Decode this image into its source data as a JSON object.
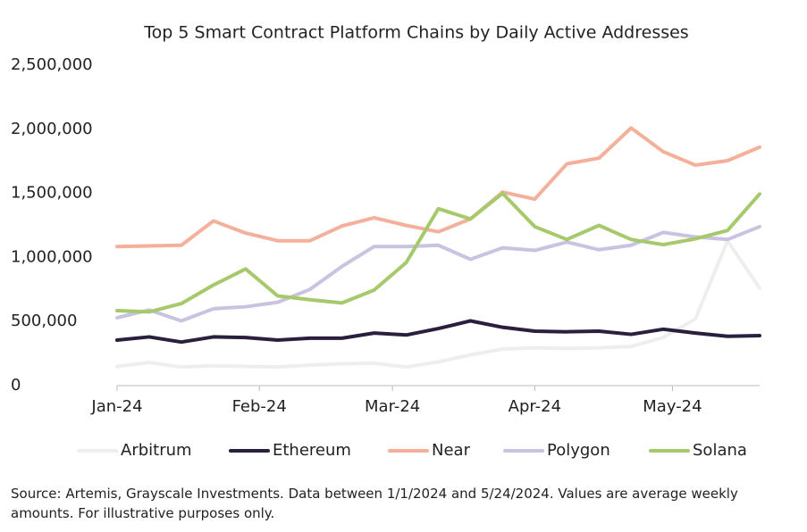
{
  "chart_data": {
    "type": "line",
    "title": "Top 5 Smart Contract Platform Chains by Daily Active Addresses",
    "x": [
      0,
      7,
      14,
      21,
      28,
      35,
      42,
      49,
      56,
      63,
      70,
      77,
      84,
      91,
      98,
      105,
      112,
      119,
      126,
      133,
      140
    ],
    "xlim": [
      0,
      140
    ],
    "xticks": [
      {
        "value": 0,
        "label": "Jan-24"
      },
      {
        "value": 31,
        "label": "Feb-24"
      },
      {
        "value": 60,
        "label": "Mar-24"
      },
      {
        "value": 91,
        "label": "Apr-24"
      },
      {
        "value": 121,
        "label": "May-24"
      }
    ],
    "ylim": [
      0,
      2500000
    ],
    "yticks": [
      {
        "value": 0,
        "label": "0"
      },
      {
        "value": 500000,
        "label": "500,000"
      },
      {
        "value": 1000000,
        "label": "1,000,000"
      },
      {
        "value": 1500000,
        "label": "1,500,000"
      },
      {
        "value": 2000000,
        "label": "2,000,000"
      },
      {
        "value": 2500000,
        "label": "2,500,000"
      }
    ],
    "series": [
      {
        "name": "Arbitrum",
        "color": "#eeeeee",
        "values": [
          150000,
          180000,
          145000,
          155000,
          150000,
          145000,
          160000,
          170000,
          175000,
          145000,
          185000,
          240000,
          285000,
          295000,
          290000,
          295000,
          305000,
          375000,
          520000,
          1130000,
          760000
        ]
      },
      {
        "name": "Ethereum",
        "color": "#2a1f3d",
        "values": [
          355000,
          380000,
          340000,
          380000,
          375000,
          355000,
          370000,
          370000,
          410000,
          395000,
          445000,
          505000,
          455000,
          425000,
          420000,
          425000,
          400000,
          440000,
          410000,
          385000,
          390000
        ]
      },
      {
        "name": "Near",
        "color": "#f4b09a",
        "values": [
          1085000,
          1090000,
          1095000,
          1285000,
          1190000,
          1130000,
          1130000,
          1245000,
          1310000,
          1250000,
          1200000,
          1300000,
          1510000,
          1455000,
          1730000,
          1775000,
          2010000,
          1825000,
          1720000,
          1755000,
          1860000
        ]
      },
      {
        "name": "Polygon",
        "color": "#c7c3e0",
        "values": [
          530000,
          590000,
          505000,
          600000,
          615000,
          650000,
          750000,
          930000,
          1085000,
          1085000,
          1095000,
          985000,
          1075000,
          1055000,
          1120000,
          1060000,
          1095000,
          1195000,
          1160000,
          1140000,
          1240000
        ]
      },
      {
        "name": "Solana",
        "color": "#a5c96b",
        "values": [
          585000,
          575000,
          640000,
          785000,
          910000,
          700000,
          670000,
          645000,
          745000,
          960000,
          1380000,
          1300000,
          1500000,
          1240000,
          1140000,
          1250000,
          1140000,
          1100000,
          1145000,
          1210000,
          1495000
        ]
      }
    ],
    "source": "Source: Artemis, Grayscale Investments. Data between 1/1/2024 and 5/24/2024. Values are average weekly amounts. For illustrative purposes only."
  }
}
